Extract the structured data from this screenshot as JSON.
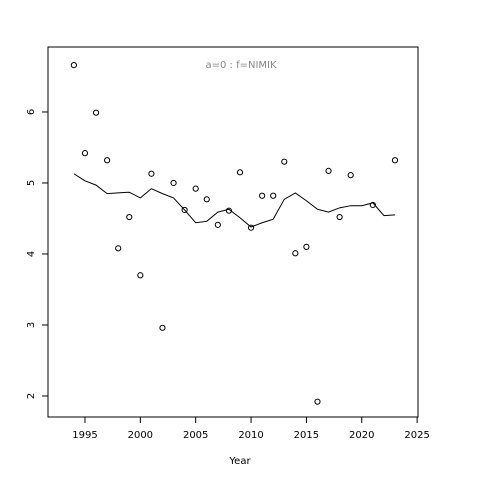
{
  "chart_data": {
    "type": "scatter",
    "title": "a=0  :  f=NIMIK",
    "xlabel": "Year",
    "xlim": [
      1991.66,
      2025.08
    ],
    "ylim": [
      1.704,
      6.915
    ],
    "xticks": [
      1995,
      2000,
      2005,
      2010,
      2015,
      2020,
      2025
    ],
    "yticks": [
      2,
      3,
      4,
      5,
      6
    ],
    "series": [
      {
        "type": "scatter",
        "color": "#000000",
        "x": [
          1994,
          1995,
          1996,
          1997,
          1998,
          1999,
          2000,
          2001,
          2002,
          2003,
          2004,
          2005,
          2006,
          2007,
          2008,
          2009,
          2010,
          2011,
          2012,
          2013,
          2014,
          2015,
          2016,
          2017,
          2018,
          2019,
          2021,
          2023
        ],
        "values": [
          6.66,
          5.42,
          5.99,
          5.32,
          4.08,
          4.52,
          3.7,
          5.13,
          2.96,
          5.0,
          4.62,
          4.92,
          4.77,
          4.41,
          4.61,
          5.15,
          4.37,
          4.82,
          4.82,
          5.3,
          4.01,
          4.1,
          1.92,
          5.17,
          4.52,
          5.11,
          4.69,
          5.32
        ]
      },
      {
        "type": "line",
        "color": "#000000",
        "x": [
          1994,
          1995,
          1996,
          1997,
          1998,
          1999,
          2000,
          2001,
          2002,
          2003,
          2004,
          2005,
          2006,
          2007,
          2008,
          2009,
          2010,
          2011,
          2012,
          2013,
          2014,
          2015,
          2016,
          2017,
          2018,
          2019,
          2020,
          2021,
          2022,
          2023
        ],
        "values": [
          5.13,
          5.03,
          4.97,
          4.85,
          4.86,
          4.87,
          4.79,
          4.92,
          4.85,
          4.79,
          4.62,
          4.44,
          4.46,
          4.59,
          4.63,
          4.51,
          4.38,
          4.44,
          4.49,
          4.77,
          4.86,
          4.75,
          4.63,
          4.59,
          4.65,
          4.68,
          4.68,
          4.72,
          4.54,
          4.55
        ]
      }
    ]
  }
}
